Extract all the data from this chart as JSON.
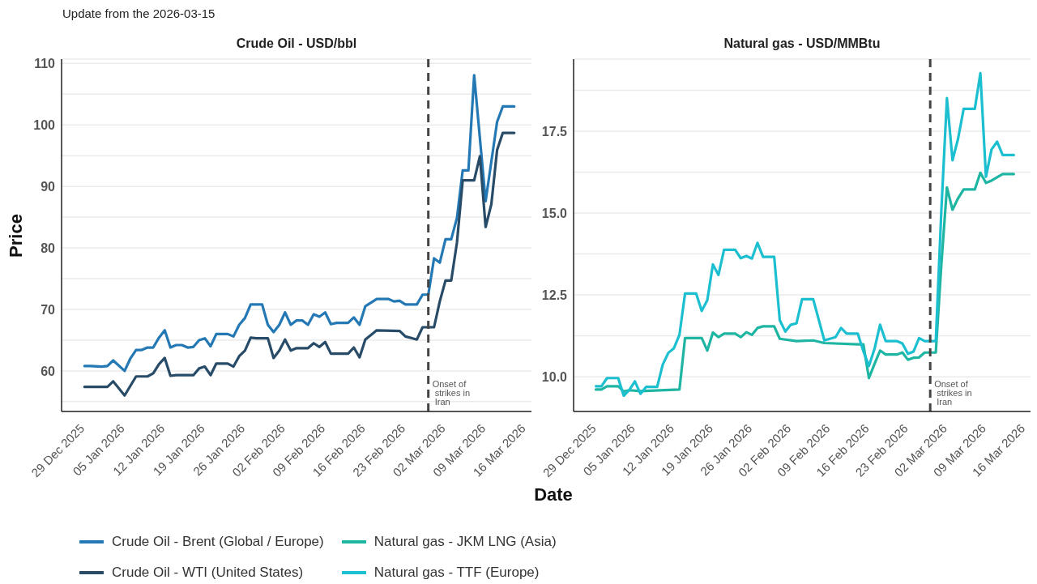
{
  "chart_data": [
    {
      "type": "line",
      "title": "Crude Oil - USD/bbl",
      "xlabel": "Date",
      "ylabel": "Price",
      "annotations": [
        "Update from the 2026-03-15"
      ],
      "legend": "bottom",
      "grid": "y",
      "marker": "none",
      "xlim": [
        "2025-12-26",
        "2026-03-18"
      ],
      "xticks": [
        {
          "value": "2025-12-29",
          "label": "29 Dec 2025"
        },
        {
          "value": "2026-01-05",
          "label": "05 Jan 2026"
        },
        {
          "value": "2026-01-12",
          "label": "12 Jan 2026"
        },
        {
          "value": "2026-01-19",
          "label": "19 Jan 2026"
        },
        {
          "value": "2026-01-26",
          "label": "26 Jan 2026"
        },
        {
          "value": "2026-02-02",
          "label": "02 Feb 2026"
        },
        {
          "value": "2026-02-09",
          "label": "09 Feb 2026"
        },
        {
          "value": "2026-02-16",
          "label": "16 Feb 2026"
        },
        {
          "value": "2026-02-23",
          "label": "23 Feb 2026"
        },
        {
          "value": "2026-03-02",
          "label": "02 Mar 2026"
        },
        {
          "value": "2026-03-09",
          "label": "09 Mar 2026"
        },
        {
          "value": "2026-03-16",
          "label": "16 Mar 2026"
        }
      ],
      "ylim": [
        53.4,
        110.7
      ],
      "yticks": [
        {
          "value": 55,
          "label": null
        },
        60,
        {
          "value": 65,
          "label": null
        },
        70,
        {
          "value": 75,
          "label": null
        },
        80,
        {
          "value": 85,
          "label": null
        },
        90,
        {
          "value": 95,
          "label": null
        },
        100,
        {
          "value": 105,
          "label": null
        },
        110
      ],
      "ref_lines": [
        {
          "axis": "x",
          "value": "2026-02-28",
          "label": "Onset of strikes in Iran",
          "color": "#444444",
          "line_style": "dashed"
        }
      ],
      "series": [
        {
          "name": "Crude Oil - Brent (Global / Europe)",
          "color": "#2479b5",
          "x": [
            "2025-12-30",
            "2025-12-31",
            "2026-01-02",
            "2026-01-03",
            "2026-01-04",
            "2026-01-06",
            "2026-01-07",
            "2026-01-08",
            "2026-01-09",
            "2026-01-10",
            "2026-01-11",
            "2026-01-12",
            "2026-01-13",
            "2026-01-14",
            "2026-01-15",
            "2026-01-16",
            "2026-01-17",
            "2026-01-18",
            "2026-01-19",
            "2026-01-20",
            "2026-01-21",
            "2026-01-22",
            "2026-01-24",
            "2026-01-25",
            "2026-01-26",
            "2026-01-27",
            "2026-01-28",
            "2026-01-30",
            "2026-01-31",
            "2026-02-01",
            "2026-02-02",
            "2026-02-03",
            "2026-02-04",
            "2026-02-05",
            "2026-02-06",
            "2026-02-07",
            "2026-02-08",
            "2026-02-09",
            "2026-02-10",
            "2026-02-11",
            "2026-02-12",
            "2026-02-14",
            "2026-02-15",
            "2026-02-16",
            "2026-02-17",
            "2026-02-19",
            "2026-02-21",
            "2026-02-22",
            "2026-02-23",
            "2026-02-24",
            "2026-02-26",
            "2026-02-27",
            "2026-02-28",
            "2026-03-01",
            "2026-03-02",
            "2026-03-03",
            "2026-03-04",
            "2026-03-05",
            "2026-03-06",
            "2026-03-07",
            "2026-03-08",
            "2026-03-10",
            "2026-03-12",
            "2026-03-13",
            "2026-03-15"
          ],
          "values": [
            60.8,
            60.8,
            60.7,
            60.8,
            61.7,
            60.0,
            62.0,
            63.4,
            63.4,
            63.8,
            63.8,
            65.4,
            66.6,
            63.8,
            64.2,
            64.2,
            63.8,
            63.9,
            65.0,
            65.3,
            64.0,
            66.0,
            66.0,
            65.6,
            67.5,
            68.6,
            70.8,
            70.8,
            67.5,
            66.3,
            67.5,
            69.5,
            67.5,
            68.2,
            68.2,
            67.5,
            69.2,
            68.8,
            69.5,
            67.6,
            67.8,
            67.8,
            68.7,
            67.5,
            70.5,
            71.7,
            71.7,
            71.3,
            71.4,
            70.8,
            70.8,
            72.4,
            72.4,
            78.3,
            77.6,
            81.4,
            81.4,
            84.9,
            92.6,
            92.6,
            108.1,
            87.6,
            100.5,
            103.0,
            103.0
          ]
        },
        {
          "name": "Crude Oil - WTI (United States)",
          "color": "#284b68",
          "x": [
            "2025-12-30",
            "2026-01-03",
            "2026-01-04",
            "2026-01-06",
            "2026-01-08",
            "2026-01-10",
            "2026-01-11",
            "2026-01-12",
            "2026-01-13",
            "2026-01-14",
            "2026-01-15",
            "2026-01-18",
            "2026-01-19",
            "2026-01-20",
            "2026-01-21",
            "2026-01-22",
            "2026-01-24",
            "2026-01-25",
            "2026-01-26",
            "2026-01-27",
            "2026-01-28",
            "2026-01-29",
            "2026-01-31",
            "2026-02-01",
            "2026-02-02",
            "2026-02-03",
            "2026-02-04",
            "2026-02-05",
            "2026-02-07",
            "2026-02-08",
            "2026-02-09",
            "2026-02-10",
            "2026-02-11",
            "2026-02-14",
            "2026-02-15",
            "2026-02-16",
            "2026-02-17",
            "2026-02-19",
            "2026-02-23",
            "2026-02-24",
            "2026-02-26",
            "2026-02-27",
            "2026-03-01",
            "2026-03-02",
            "2026-03-03",
            "2026-03-04",
            "2026-03-05",
            "2026-03-06",
            "2026-03-08",
            "2026-03-09",
            "2026-03-10",
            "2026-03-11",
            "2026-03-12",
            "2026-03-13",
            "2026-03-15"
          ],
          "values": [
            57.4,
            57.4,
            58.3,
            56.0,
            59.1,
            59.1,
            59.6,
            61.1,
            62.1,
            59.2,
            59.3,
            59.3,
            60.4,
            60.7,
            59.3,
            61.2,
            61.2,
            60.7,
            62.4,
            63.3,
            65.4,
            65.3,
            65.3,
            62.1,
            63.3,
            65.1,
            63.3,
            63.7,
            63.7,
            64.5,
            63.9,
            64.7,
            62.8,
            62.8,
            63.8,
            62.2,
            65.1,
            66.6,
            66.5,
            65.6,
            65.1,
            67.1,
            67.1,
            71.3,
            74.7,
            74.7,
            80.9,
            91.0,
            91.0,
            94.9,
            83.4,
            87.1,
            95.9,
            98.7,
            98.7
          ]
        }
      ]
    },
    {
      "type": "line",
      "title": "Natural gas - USD/MMBtu",
      "legend": "bottom",
      "grid": "y",
      "marker": "none",
      "xlim": [
        "2025-12-26",
        "2026-03-18"
      ],
      "xticks": [
        {
          "value": "2025-12-29",
          "label": "29 Dec 2025"
        },
        {
          "value": "2026-01-05",
          "label": "05 Jan 2026"
        },
        {
          "value": "2026-01-12",
          "label": "12 Jan 2026"
        },
        {
          "value": "2026-01-19",
          "label": "19 Jan 2026"
        },
        {
          "value": "2026-01-26",
          "label": "26 Jan 2026"
        },
        {
          "value": "2026-02-02",
          "label": "02 Feb 2026"
        },
        {
          "value": "2026-02-09",
          "label": "09 Feb 2026"
        },
        {
          "value": "2026-02-16",
          "label": "16 Feb 2026"
        },
        {
          "value": "2026-02-23",
          "label": "23 Feb 2026"
        },
        {
          "value": "2026-03-02",
          "label": "02 Mar 2026"
        },
        {
          "value": "2026-03-09",
          "label": "09 Mar 2026"
        },
        {
          "value": "2026-03-16",
          "label": "16 Mar 2026"
        }
      ],
      "ylim": [
        8.94,
        19.7
      ],
      "yticks": [
        {
          "value": 10,
          "label": "10.0"
        },
        {
          "value": 11.25,
          "label": null
        },
        {
          "value": 12.5,
          "label": "12.5"
        },
        {
          "value": 13.75,
          "label": null
        },
        {
          "value": 15,
          "label": "15.0"
        },
        {
          "value": 16.25,
          "label": null
        },
        {
          "value": 17.5,
          "label": "17.5"
        },
        {
          "value": 18.75,
          "label": null
        }
      ],
      "ref_lines": [
        {
          "axis": "x",
          "value": "2026-02-28",
          "label": "Onset of strikes in Iran",
          "color": "#444444",
          "line_style": "dashed"
        }
      ],
      "series": [
        {
          "name": "Natural gas - JKM LNG (Asia)",
          "color": "#1fb5a3",
          "x": [
            "2025-12-30",
            "2025-12-31",
            "2026-01-01",
            "2026-01-03",
            "2026-01-04",
            "2026-01-05",
            "2026-01-07",
            "2026-01-14",
            "2026-01-15",
            "2026-01-18",
            "2026-01-19",
            "2026-01-20",
            "2026-01-21",
            "2026-01-22",
            "2026-01-24",
            "2026-01-25",
            "2026-01-26",
            "2026-01-27",
            "2026-01-28",
            "2026-01-29",
            "2026-01-31",
            "2026-02-01",
            "2026-02-04",
            "2026-02-07",
            "2026-02-09",
            "2026-02-15",
            "2026-02-16",
            "2026-02-17",
            "2026-02-18",
            "2026-02-19",
            "2026-02-20",
            "2026-02-22",
            "2026-02-23",
            "2026-02-24",
            "2026-02-25",
            "2026-02-26",
            "2026-02-27",
            "2026-03-01",
            "2026-03-02",
            "2026-03-03",
            "2026-03-04",
            "2026-03-05",
            "2026-03-06",
            "2026-03-08",
            "2026-03-09",
            "2026-03-10",
            "2026-03-11",
            "2026-03-12",
            "2026-03-13",
            "2026-03-15"
          ],
          "values": [
            9.61,
            9.61,
            9.71,
            9.71,
            9.55,
            9.59,
            9.56,
            9.61,
            11.18,
            11.18,
            10.8,
            11.35,
            11.21,
            11.32,
            11.32,
            11.21,
            11.36,
            11.28,
            11.49,
            11.54,
            11.54,
            11.16,
            11.09,
            11.11,
            11.03,
            10.99,
            10.99,
            9.96,
            10.39,
            10.8,
            10.68,
            10.68,
            10.74,
            10.52,
            10.58,
            10.59,
            10.74,
            10.74,
            13.43,
            15.78,
            15.1,
            15.45,
            15.72,
            15.72,
            16.23,
            15.92,
            15.99,
            16.09,
            16.19,
            16.19
          ]
        },
        {
          "name": "Natural gas - TTF (Europe)",
          "color": "#1cbfd0",
          "x": [
            "2025-12-30",
            "2025-12-31",
            "2026-01-01",
            "2026-01-03",
            "2026-01-04",
            "2026-01-05",
            "2026-01-06",
            "2026-01-07",
            "2026-01-08",
            "2026-01-10",
            "2026-01-11",
            "2026-01-12",
            "2026-01-13",
            "2026-01-14",
            "2026-01-15",
            "2026-01-17",
            "2026-01-18",
            "2026-01-19",
            "2026-01-20",
            "2026-01-21",
            "2026-01-22",
            "2026-01-24",
            "2026-01-25",
            "2026-01-26",
            "2026-01-27",
            "2026-01-28",
            "2026-01-29",
            "2026-01-31",
            "2026-02-01",
            "2026-02-02",
            "2026-02-03",
            "2026-02-04",
            "2026-02-05",
            "2026-02-07",
            "2026-02-09",
            "2026-02-11",
            "2026-02-12",
            "2026-02-13",
            "2026-02-15",
            "2026-02-16",
            "2026-02-17",
            "2026-02-18",
            "2026-02-19",
            "2026-02-20",
            "2026-02-22",
            "2026-02-23",
            "2026-02-24",
            "2026-02-25",
            "2026-02-26",
            "2026-02-27",
            "2026-03-01",
            "2026-03-02",
            "2026-03-03",
            "2026-03-04",
            "2026-03-05",
            "2026-03-06",
            "2026-03-08",
            "2026-03-09",
            "2026-03-10",
            "2026-03-11",
            "2026-03-12",
            "2026-03-13",
            "2026-03-15"
          ],
          "values": [
            9.71,
            9.71,
            9.96,
            9.96,
            9.42,
            9.6,
            9.86,
            9.48,
            9.69,
            9.69,
            10.37,
            10.73,
            10.87,
            11.28,
            12.54,
            12.54,
            12.01,
            12.34,
            13.43,
            13.11,
            13.88,
            13.88,
            13.62,
            13.69,
            13.61,
            14.09,
            13.66,
            13.66,
            11.73,
            11.38,
            11.59,
            11.63,
            12.37,
            12.37,
            11.11,
            11.21,
            11.49,
            11.32,
            11.32,
            10.78,
            10.33,
            10.85,
            11.59,
            11.09,
            11.09,
            11.02,
            10.7,
            10.77,
            11.18,
            11.09,
            11.09,
            15.08,
            18.51,
            16.61,
            17.27,
            18.18,
            18.18,
            19.27,
            16.11,
            16.94,
            17.18,
            16.77,
            16.77
          ]
        }
      ]
    }
  ]
}
